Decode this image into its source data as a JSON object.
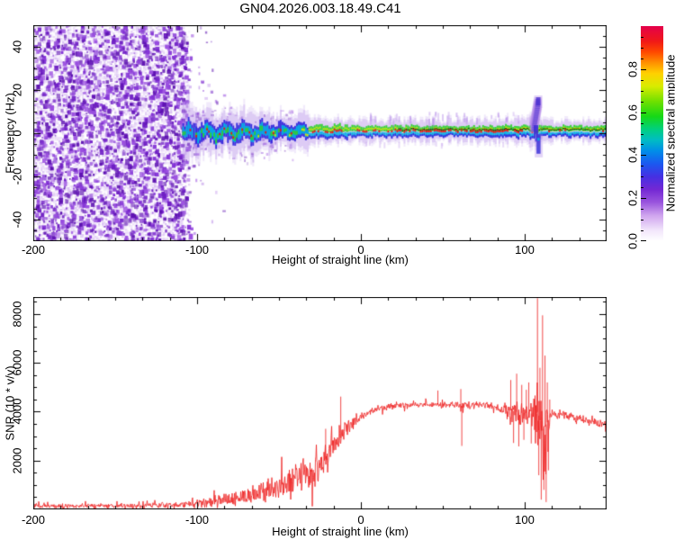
{
  "title": "GN04.2026.003.18.49.C41",
  "chart_data": [
    {
      "type": "heatmap",
      "title": "GN04.2026.003.18.49.C41",
      "xlabel": "Height of straight line (km)",
      "ylabel": "Frequency (Hz)",
      "xlim": [
        -200,
        150
      ],
      "ylim": [
        -50,
        50
      ],
      "x_ticks": [
        -200,
        -100,
        0,
        100
      ],
      "y_ticks": [
        40,
        20,
        0,
        -20,
        -40
      ],
      "x_minor_step": 16.667,
      "y_minor_step": 5,
      "grid": false,
      "colorbar": {
        "label": "Normalized spectral amplitude",
        "range": [
          0,
          1
        ],
        "ticks": [
          0.0,
          0.2,
          0.4,
          0.6,
          0.8
        ],
        "minor_step": 0.05,
        "stops": [
          [
            0.0,
            "#ffffff"
          ],
          [
            0.05,
            "#f2e6fb"
          ],
          [
            0.12,
            "#cfa4ee"
          ],
          [
            0.18,
            "#9a55dd"
          ],
          [
            0.24,
            "#7428d4"
          ],
          [
            0.3,
            "#4530e2"
          ],
          [
            0.36,
            "#1b58f0"
          ],
          [
            0.42,
            "#008ee8"
          ],
          [
            0.47,
            "#00bcc4"
          ],
          [
            0.52,
            "#00d080"
          ],
          [
            0.58,
            "#16d816"
          ],
          [
            0.65,
            "#70e000"
          ],
          [
            0.72,
            "#d8ec00"
          ],
          [
            0.78,
            "#ffd000"
          ],
          [
            0.83,
            "#ff9000"
          ],
          [
            0.88,
            "#ff4800"
          ],
          [
            0.93,
            "#f01818"
          ],
          [
            1.0,
            "#e4004a"
          ]
        ]
      },
      "noise_region": {
        "from_km": -200,
        "to_km": -111,
        "fade_to_km": -104,
        "straggler_to_km": -78,
        "haze_colors": [
          "#ead9f8",
          "#ddc5f4",
          "#cfaef0"
        ],
        "dot_colors": [
          "#9a4fe0",
          "#8332d6",
          "#6f1fc4",
          "#5c10b0"
        ]
      },
      "signal_band": {
        "center_hz": 0,
        "colors": {
          "fringe": "#b388e8",
          "blue": "#3428dc",
          "cyan": "#00b4e4",
          "green": "#2ed42e",
          "yellow": "#dfe800",
          "red": "#ee1212",
          "line": "#101010"
        },
        "segments": [
          {
            "from_km": -109,
            "to_km": -101,
            "center_hz": 0.3,
            "core_hz": 4.2,
            "fringe_hz": 13.0,
            "wobble_hz": 2.2,
            "hot": 0.04,
            "style": "wavy"
          },
          {
            "from_km": -101,
            "to_km": -85,
            "center_hz": 0.3,
            "core_hz": 4.4,
            "fringe_hz": 9.0,
            "wobble_hz": 2.4,
            "hot": 0.08,
            "style": "wavy"
          },
          {
            "from_km": -85,
            "to_km": -55,
            "center_hz": 0.4,
            "core_hz": 4.2,
            "fringe_hz": 8.5,
            "wobble_hz": 2.0,
            "hot": 0.13,
            "style": "wavy"
          },
          {
            "from_km": -55,
            "to_km": -32,
            "center_hz": 0.8,
            "core_hz": 3.4,
            "fringe_hz": 7.0,
            "wobble_hz": 1.5,
            "hot": 0.22,
            "style": "wavy"
          },
          {
            "from_km": -32,
            "to_km": -8,
            "center_hz": 1.1,
            "core_hz": 2.6,
            "fringe_hz": 5.0,
            "wobble_hz": 0.8,
            "hot": 0.38,
            "style": "strata"
          },
          {
            "from_km": -8,
            "to_km": 40,
            "center_hz": 1.2,
            "core_hz": 2.2,
            "fringe_hz": 4.5,
            "wobble_hz": 0.35,
            "hot": 0.55,
            "style": "strata"
          },
          {
            "from_km": 40,
            "to_km": 88,
            "center_hz": 1.2,
            "core_hz": 2.2,
            "fringe_hz": 4.5,
            "wobble_hz": 0.25,
            "hot": 0.85,
            "style": "strata"
          },
          {
            "from_km": 88,
            "to_km": 103,
            "center_hz": 1.2,
            "core_hz": 2.2,
            "fringe_hz": 5.0,
            "wobble_hz": 0.4,
            "hot": 0.3,
            "style": "strata"
          },
          {
            "from_km": 103,
            "to_km": 110,
            "center_hz": 1.0,
            "core_hz": 2.6,
            "fringe_hz": 6.0,
            "wobble_hz": 0.6,
            "hot": 0.1,
            "style": "strata"
          },
          {
            "from_km": 110,
            "to_km": 150,
            "center_hz": 1.2,
            "core_hz": 2.2,
            "fringe_hz": 4.2,
            "wobble_hz": 0.2,
            "hot": 0.12,
            "style": "strata"
          }
        ],
        "carrier_line": {
          "from_km": 22,
          "to_km": 150
        },
        "spike": {
          "km_start": 105.2,
          "km_peak": 108.0,
          "up_hz": 15,
          "down_km": 108.3,
          "down_hz": -9.5
        },
        "smudges": {
          "above_from_km": 2,
          "above_to_km": 97,
          "count_above": 36,
          "count_below": 12
        }
      }
    },
    {
      "type": "line",
      "xlabel": "Height of straight line (km)",
      "ylabel": "SNR (10 * v/v)",
      "xlim": [
        -200,
        150
      ],
      "ylim": [
        0,
        8700
      ],
      "x_ticks": [
        -200,
        -100,
        0,
        100
      ],
      "y_ticks": [
        2000,
        4000,
        6000,
        8000
      ],
      "x_minor_step": 16.667,
      "y_minor_step": 500,
      "grid": false,
      "line_color": "#ee2828",
      "envelope_points_km_mean_jitter": [
        [
          -200,
          140,
          110
        ],
        [
          -160,
          150,
          115
        ],
        [
          -130,
          160,
          125
        ],
        [
          -115,
          180,
          150
        ],
        [
          -105,
          210,
          190
        ],
        [
          -95,
          260,
          260
        ],
        [
          -85,
          340,
          340
        ],
        [
          -75,
          480,
          430
        ],
        [
          -65,
          620,
          520
        ],
        [
          -55,
          800,
          640
        ],
        [
          -45,
          1000,
          760
        ],
        [
          -37,
          1250,
          880
        ],
        [
          -30,
          1500,
          950
        ],
        [
          -24,
          1850,
          900
        ],
        [
          -18,
          2350,
          750
        ],
        [
          -12,
          2950,
          550
        ],
        [
          -6,
          3500,
          380
        ],
        [
          0,
          3850,
          240
        ],
        [
          8,
          4080,
          170
        ],
        [
          20,
          4220,
          150
        ],
        [
          35,
          4300,
          150
        ],
        [
          50,
          4280,
          170
        ],
        [
          62,
          4250,
          200
        ],
        [
          75,
          4280,
          170
        ],
        [
          85,
          4150,
          220
        ],
        [
          92,
          4050,
          450
        ],
        [
          98,
          3950,
          650
        ],
        [
          103,
          3950,
          500
        ],
        [
          105,
          3900,
          700
        ],
        [
          108,
          4000,
          2800
        ],
        [
          111,
          3200,
          2600
        ],
        [
          114,
          3600,
          900
        ],
        [
          117,
          3950,
          300
        ],
        [
          125,
          3850,
          200
        ],
        [
          138,
          3650,
          190
        ],
        [
          150,
          3450,
          190
        ]
      ],
      "spikes_km_value": [
        [
          -21.5,
          3300
        ],
        [
          -12.3,
          4620
        ],
        [
          47,
          4870
        ],
        [
          61,
          4930
        ],
        [
          61.6,
          2600
        ],
        [
          91.5,
          5300
        ],
        [
          93.2,
          2720
        ],
        [
          95.1,
          5560
        ],
        [
          96.4,
          2580
        ],
        [
          98.2,
          5100
        ],
        [
          99.5,
          2850
        ],
        [
          101,
          4900
        ],
        [
          102.5,
          5200
        ],
        [
          104,
          2700
        ],
        [
          107.8,
          8650
        ],
        [
          108.6,
          1400
        ],
        [
          109.3,
          5800
        ],
        [
          110.1,
          400
        ],
        [
          110.9,
          7950
        ],
        [
          111.7,
          800
        ],
        [
          112.4,
          6300
        ],
        [
          113.1,
          300
        ],
        [
          113.8,
          5200
        ],
        [
          114.5,
          1600
        ],
        [
          115.3,
          4500
        ]
      ]
    }
  ]
}
